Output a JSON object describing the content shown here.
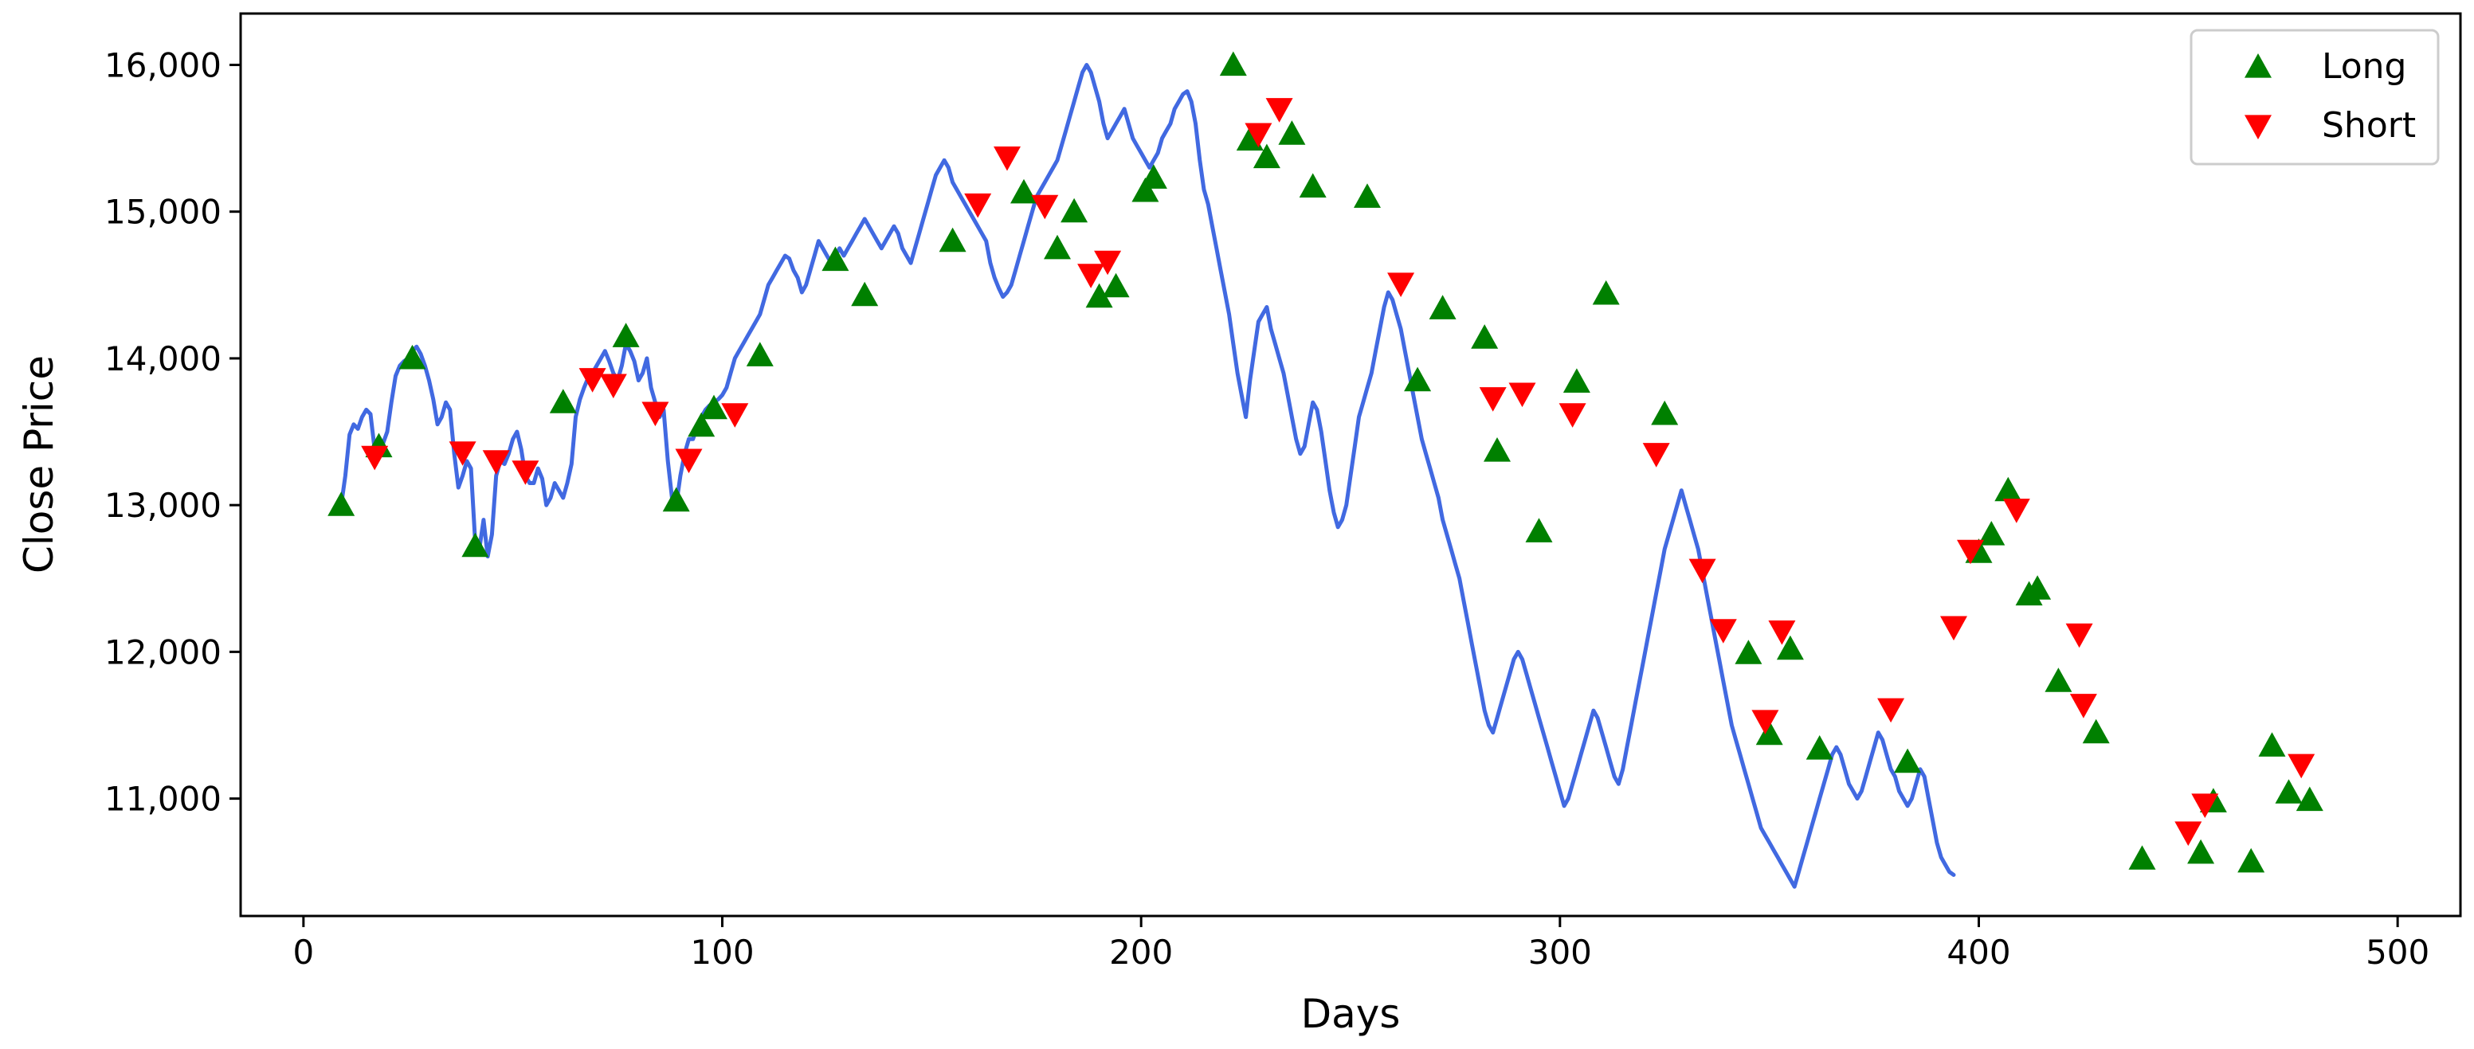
{
  "chart_data": {
    "type": "line",
    "xlabel": "Days",
    "ylabel": "Close Price",
    "xlim": [
      -15,
      515
    ],
    "ylim": [
      10200,
      16350
    ],
    "x_ticks": [
      0,
      100,
      200,
      300,
      400,
      500
    ],
    "x_tick_labels": [
      "0",
      "100",
      "200",
      "300",
      "400",
      "500"
    ],
    "y_ticks": [
      11000,
      12000,
      13000,
      14000,
      15000,
      16000
    ],
    "y_tick_labels": [
      "11,000",
      "12,000",
      "13,000",
      "14,000",
      "15,000",
      "16,000"
    ],
    "grid": false,
    "legend_position": "top-right",
    "series": [
      {
        "type": "line",
        "color": "#4169e1",
        "x_start": 9,
        "x_step": 1,
        "y": [
          13000,
          13200,
          13480,
          13550,
          13520,
          13600,
          13650,
          13620,
          13380,
          13350,
          13420,
          13500,
          13700,
          13880,
          13950,
          13980,
          14000,
          14050,
          14080,
          14030,
          13950,
          13850,
          13720,
          13550,
          13600,
          13700,
          13650,
          13350,
          13120,
          13200,
          13300,
          13250,
          12750,
          12700,
          12900,
          12650,
          12800,
          13200,
          13300,
          13280,
          13350,
          13450,
          13500,
          13380,
          13200,
          13150,
          13150,
          13250,
          13180,
          13000,
          13050,
          13150,
          13100,
          13050,
          13150,
          13280,
          13600,
          13720,
          13800,
          13870,
          13900,
          13950,
          14000,
          14050,
          13980,
          13900,
          13850,
          13950,
          14100,
          14050,
          13980,
          13850,
          13900,
          14000,
          13800,
          13700,
          13600,
          13650,
          13300,
          13050,
          13000,
          13200,
          13350,
          13450,
          13450,
          13530,
          13600,
          13650,
          13680,
          13700,
          13720,
          13750,
          13800,
          13900,
          14000,
          14050,
          14100,
          14150,
          14200,
          14250,
          14300,
          14400,
          14500,
          14550,
          14600,
          14650,
          14700,
          14680,
          14600,
          14550,
          14450,
          14500,
          14600,
          14700,
          14800,
          14750,
          14700,
          14650,
          14700,
          14750,
          14700,
          14750,
          14800,
          14850,
          14900,
          14950,
          14900,
          14850,
          14800,
          14750,
          14800,
          14850,
          14900,
          14850,
          14750,
          14700,
          14650,
          14750,
          14850,
          14950,
          15050,
          15150,
          15250,
          15300,
          15350,
          15300,
          15200,
          15150,
          15100,
          15050,
          15000,
          14950,
          14900,
          14850,
          14800,
          14650,
          14550,
          14480,
          14420,
          14450,
          14500,
          14600,
          14700,
          14800,
          14900,
          15000,
          15100,
          15150,
          15200,
          15250,
          15300,
          15350,
          15450,
          15550,
          15650,
          15750,
          15850,
          15950,
          16000,
          15950,
          15850,
          15750,
          15600,
          15500,
          15550,
          15600,
          15650,
          15700,
          15600,
          15500,
          15450,
          15400,
          15350,
          15300,
          15350,
          15400,
          15500,
          15550,
          15600,
          15700,
          15750,
          15800,
          15820,
          15750,
          15600,
          15350,
          15150,
          15050,
          14900,
          14750,
          14600,
          14450,
          14300,
          14100,
          13900,
          13750,
          13600,
          13850,
          14050,
          14250,
          14300,
          14350,
          14200,
          14100,
          14000,
          13900,
          13750,
          13600,
          13450,
          13350,
          13400,
          13550,
          13700,
          13650,
          13500,
          13300,
          13100,
          12950,
          12850,
          12900,
          13000,
          13200,
          13400,
          13600,
          13700,
          13800,
          13900,
          14050,
          14200,
          14350,
          14450,
          14400,
          14300,
          14200,
          14050,
          13900,
          13750,
          13600,
          13450,
          13350,
          13250,
          13150,
          13050,
          12900,
          12800,
          12700,
          12600,
          12500,
          12350,
          12200,
          12050,
          11900,
          11750,
          11600,
          11500,
          11450,
          11550,
          11650,
          11750,
          11850,
          11950,
          12000,
          11950,
          11850,
          11750,
          11650,
          11550,
          11450,
          11350,
          11250,
          11150,
          11050,
          10950,
          11000,
          11100,
          11200,
          11300,
          11400,
          11500,
          11600,
          11550,
          11450,
          11350,
          11250,
          11150,
          11100,
          11200,
          11350,
          11500,
          11650,
          11800,
          11950,
          12100,
          12250,
          12400,
          12550,
          12700,
          12800,
          12900,
          13000,
          13100,
          13000,
          12900,
          12800,
          12700,
          12550,
          12400,
          12250,
          12100,
          11950,
          11800,
          11650,
          11500,
          11400,
          11300,
          11200,
          11100,
          11000,
          10900,
          10800,
          10750,
          10700,
          10650,
          10600,
          10550,
          10500,
          10450,
          10400,
          10500,
          10600,
          10700,
          10800,
          10900,
          11000,
          11100,
          11200,
          11300,
          11350,
          11300,
          11200,
          11100,
          11050,
          11000,
          11050,
          11150,
          11250,
          11350,
          11450,
          11400,
          11300,
          11200,
          11150,
          11050,
          11000,
          10950,
          11000,
          11100,
          11200,
          11150,
          11000,
          10850,
          10700,
          10600,
          10550,
          10500,
          10480
        ]
      },
      {
        "name": "Long",
        "type": "scatter",
        "marker": "triangle-up",
        "color": "#008000",
        "x": [
          9,
          18,
          26,
          41,
          62,
          77,
          89,
          95,
          98,
          109,
          127,
          134,
          155,
          172,
          180,
          184,
          190,
          194,
          201,
          203,
          222,
          226,
          230,
          236,
          241,
          254,
          266,
          272,
          282,
          285,
          295,
          304,
          311,
          325,
          345,
          350,
          355,
          362,
          383,
          400,
          403,
          407,
          412,
          414,
          419,
          428,
          439,
          453,
          456,
          465,
          470,
          474,
          479
        ],
        "y": [
          13000,
          13400,
          14000,
          12720,
          13700,
          14150,
          13030,
          13540,
          13660,
          14020,
          14670,
          14430,
          14800,
          15130,
          14750,
          15000,
          14420,
          14490,
          15140,
          15230,
          16000,
          15490,
          15370,
          15530,
          15170,
          15100,
          13850,
          14340,
          14140,
          13370,
          12820,
          13840,
          14440,
          13620,
          11990,
          11440,
          12020,
          11340,
          11250,
          12680,
          12800,
          13100,
          12390,
          12430,
          11800,
          11450,
          10590,
          10630,
          10980,
          10570,
          11360,
          11040,
          10990
        ]
      },
      {
        "name": "Short",
        "type": "scatter",
        "marker": "triangle-down",
        "color": "#ff0000",
        "x": [
          17,
          38,
          46,
          53,
          69,
          74,
          84,
          92,
          103,
          161,
          168,
          177,
          188,
          192,
          228,
          233,
          262,
          284,
          291,
          303,
          323,
          334,
          339,
          349,
          353,
          379,
          394,
          398,
          409,
          424,
          425,
          450,
          454,
          477
        ],
        "y": [
          13330,
          13360,
          13300,
          13230,
          13860,
          13820,
          13630,
          13310,
          13620,
          15050,
          15370,
          15040,
          14570,
          14660,
          15530,
          15700,
          14510,
          13730,
          13760,
          13620,
          13350,
          12560,
          12150,
          11530,
          12140,
          11610,
          12170,
          12690,
          12970,
          12120,
          11640,
          10770,
          10960,
          11230
        ]
      }
    ],
    "legend": [
      {
        "label": "Long",
        "marker": "triangle-up",
        "color": "#008000"
      },
      {
        "label": "Short",
        "marker": "triangle-down",
        "color": "#ff0000"
      }
    ]
  }
}
